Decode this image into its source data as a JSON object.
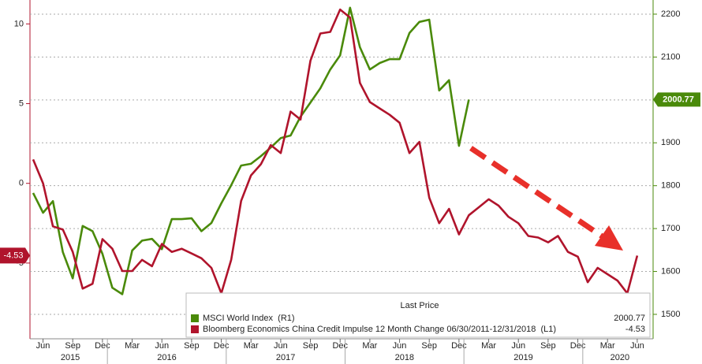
{
  "chart_data": {
    "type": "line",
    "x": [
      "2015-05",
      "2015-06",
      "2015-07",
      "2015-08",
      "2015-09",
      "2015-10",
      "2015-11",
      "2015-12",
      "2016-01",
      "2016-02",
      "2016-03",
      "2016-04",
      "2016-05",
      "2016-06",
      "2016-07",
      "2016-08",
      "2016-09",
      "2016-10",
      "2016-11",
      "2016-12",
      "2017-01",
      "2017-02",
      "2017-03",
      "2017-04",
      "2017-05",
      "2017-06",
      "2017-07",
      "2017-08",
      "2017-09",
      "2017-10",
      "2017-11",
      "2017-12",
      "2018-01",
      "2018-02",
      "2018-03",
      "2018-04",
      "2018-05",
      "2018-06",
      "2018-07",
      "2018-08",
      "2018-09",
      "2018-10",
      "2018-11",
      "2018-12",
      "2019-01",
      "2019-02",
      "2019-03",
      "2019-04",
      "2019-05",
      "2019-06",
      "2019-07",
      "2019-08",
      "2019-09",
      "2019-10",
      "2019-11",
      "2019-12",
      "2020-01",
      "2020-02",
      "2020-03",
      "2020-04",
      "2020-05",
      "2020-06"
    ],
    "series": [
      {
        "name": "MSCI World Index  (R1)",
        "color": "#4a8a0a",
        "axis": "y2",
        "values": [
          1783,
          1737,
          1764,
          1645,
          1584,
          1706,
          1694,
          1641,
          1562,
          1547,
          1649,
          1672,
          1676,
          1652,
          1722,
          1722,
          1724,
          1694,
          1713,
          1759,
          1801,
          1847,
          1851,
          1869,
          1889,
          1911,
          1917,
          1961,
          1994,
          2027,
          2071,
          2104,
          2215,
          2123,
          2071,
          2086,
          2095,
          2095,
          2156,
          2182,
          2187,
          2022,
          2046,
          1893,
          2000.77,
          null,
          null,
          null,
          null,
          null,
          null,
          null,
          null,
          null,
          null,
          null,
          null,
          null,
          null,
          null,
          null,
          null
        ]
      },
      {
        "name": "Bloomberg Economics China Credit Impulse 12 Month Change 06/30/2011-12/31/2018  (L1)",
        "color": "#b0142c",
        "values": [
          1.5,
          0.0,
          -2.7,
          -2.9,
          -4.3,
          -6.6,
          -6.3,
          -3.5,
          -4.1,
          -5.5,
          -5.5,
          -4.8,
          -5.2,
          -3.8,
          -4.3,
          -4.1,
          -4.4,
          -4.7,
          -5.3,
          -6.9,
          -4.8,
          -1.1,
          0.5,
          1.2,
          2.4,
          1.9,
          4.5,
          4.0,
          7.7,
          9.4,
          9.5,
          10.9,
          10.4,
          6.3,
          5.1,
          4.7,
          4.3,
          3.8,
          1.9,
          2.6,
          -0.9,
          -2.5,
          -1.6,
          -3.2,
          -2.0,
          -1.5,
          -1.0,
          -1.4,
          -2.1,
          -2.5,
          -3.3,
          -3.4,
          -3.7,
          -3.3,
          -4.3,
          -4.6,
          -6.2,
          -5.3,
          -5.7,
          -6.1,
          -6.9,
          -4.53
        ]
      }
    ],
    "legend_title": "Last Price",
    "xlim": [
      "2015-05",
      "2020-08"
    ],
    "xticks": [
      {
        "value": "2015-06",
        "label": "Jun"
      },
      {
        "value": "2015-09",
        "label": "Sep"
      },
      {
        "value": "2015-12",
        "label": "Dec"
      },
      {
        "value": "2016-03",
        "label": "Mar"
      },
      {
        "value": "2016-06",
        "label": "Jun"
      },
      {
        "value": "2016-09",
        "label": "Sep"
      },
      {
        "value": "2016-12",
        "label": "Dec"
      },
      {
        "value": "2017-03",
        "label": "Mar"
      },
      {
        "value": "2017-06",
        "label": "Jun"
      },
      {
        "value": "2017-09",
        "label": "Sep"
      },
      {
        "value": "2017-12",
        "label": "Dec"
      },
      {
        "value": "2018-03",
        "label": "Mar"
      },
      {
        "value": "2018-06",
        "label": "Jun"
      },
      {
        "value": "2018-09",
        "label": "Sep"
      },
      {
        "value": "2018-12",
        "label": "Dec"
      },
      {
        "value": "2019-03",
        "label": "Mar"
      },
      {
        "value": "2019-06",
        "label": "Jun"
      },
      {
        "value": "2019-09",
        "label": "Sep"
      },
      {
        "value": "2019-12",
        "label": "Dec"
      },
      {
        "value": "2020-03",
        "label": "Mar"
      },
      {
        "value": "2020-06",
        "label": "Jun"
      }
    ],
    "years": [
      "2015",
      "2016",
      "2017",
      "2018",
      "2019",
      "2020"
    ],
    "ylim": [
      -9.75,
      11.5
    ],
    "yticks": [
      10,
      5,
      0,
      -5
    ],
    "y2lim": [
      1443,
      2233
    ],
    "y2ticks": [
      2200,
      2100,
      2000,
      1900,
      1800,
      1700,
      1600,
      1500
    ],
    "grid": "y2"
  }
}
